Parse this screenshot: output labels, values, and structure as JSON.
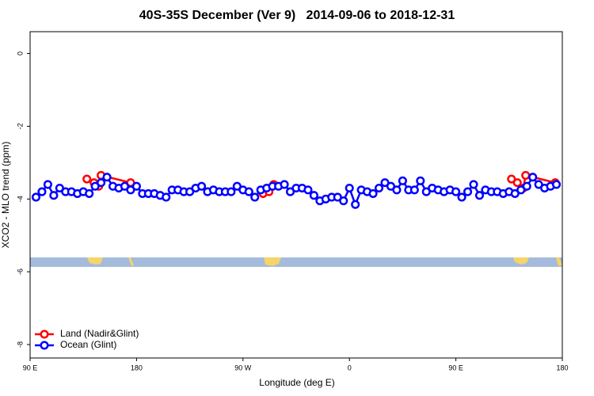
{
  "chart_data": {
    "type": "line",
    "title": "40S-35S December (Ver 9)   2014-09-06 to 2018-12-31",
    "xlabel": "Longitude (deg E)",
    "ylabel": "XCO2 - MLO trend (ppm)",
    "xlim": [
      90,
      540
    ],
    "ylim": [
      -8.37,
      0.6
    ],
    "xticks": [
      {
        "value": 90,
        "label": "90 E"
      },
      {
        "value": 180,
        "label": "180"
      },
      {
        "value": 270,
        "label": "90 W"
      },
      {
        "value": 360,
        "label": "0"
      },
      {
        "value": 450,
        "label": "90 E"
      },
      {
        "value": 540,
        "label": "180"
      }
    ],
    "yticks": [
      0,
      -2,
      -4,
      -6,
      -8
    ],
    "legend": "bottomleft",
    "series": [
      {
        "name": "Land (Nadir&Glint)",
        "color": "#ff0000",
        "x": [
          138,
          144,
          148,
          150,
          175,
          230,
          287,
          292,
          296,
          400,
          497,
          502,
          507,
          509,
          534
        ],
        "values": [
          -3.45,
          -3.55,
          -3.65,
          -3.35,
          -3.55,
          null,
          -3.85,
          -3.8,
          -3.6,
          null,
          -3.45,
          -3.55,
          -3.7,
          -3.35,
          -3.55
        ]
      },
      {
        "name": "Ocean (Glint)",
        "color": "#0000ff",
        "x": [
          95,
          100,
          105,
          110,
          115,
          120,
          125,
          130,
          135,
          140,
          145,
          150,
          155,
          160,
          165,
          170,
          175,
          180,
          185,
          190,
          195,
          200,
          205,
          210,
          215,
          220,
          225,
          230,
          235,
          240,
          245,
          250,
          255,
          260,
          265,
          270,
          275,
          280,
          285,
          290,
          295,
          300,
          305,
          310,
          315,
          320,
          325,
          330,
          335,
          340,
          345,
          350,
          355,
          360,
          365,
          370,
          375,
          380,
          385,
          390,
          395,
          400,
          405,
          410,
          415,
          420,
          425,
          430,
          435,
          440,
          445,
          450,
          455,
          460,
          465,
          470,
          475,
          480,
          485,
          490,
          495,
          500,
          505,
          510,
          515,
          520,
          525,
          530,
          535
        ],
        "values": [
          -3.95,
          -3.8,
          -3.6,
          -3.9,
          -3.7,
          -3.8,
          -3.8,
          -3.85,
          -3.8,
          -3.85,
          -3.65,
          -3.55,
          -3.4,
          -3.65,
          -3.7,
          -3.65,
          -3.75,
          -3.65,
          -3.85,
          -3.85,
          -3.85,
          -3.9,
          -3.95,
          -3.75,
          -3.75,
          -3.8,
          -3.8,
          -3.7,
          -3.65,
          -3.8,
          -3.75,
          -3.8,
          -3.8,
          -3.8,
          -3.65,
          -3.75,
          -3.8,
          -3.95,
          -3.75,
          -3.7,
          -3.65,
          -3.65,
          -3.6,
          -3.8,
          -3.7,
          -3.7,
          -3.75,
          -3.9,
          -4.05,
          -4.0,
          -3.95,
          -3.95,
          -4.05,
          -3.7,
          -4.15,
          -3.75,
          -3.8,
          -3.85,
          -3.7,
          -3.55,
          -3.65,
          -3.75,
          -3.5,
          -3.75,
          -3.75,
          -3.5,
          -3.8,
          -3.7,
          -3.75,
          -3.8,
          -3.75,
          -3.8,
          -3.95,
          -3.8,
          -3.6,
          -3.9,
          -3.75,
          -3.8,
          -3.8,
          -3.85,
          -3.8,
          -3.85,
          -3.75,
          -3.65,
          -3.4,
          -3.6,
          -3.7,
          -3.65,
          -3.6
        ]
      }
    ]
  }
}
